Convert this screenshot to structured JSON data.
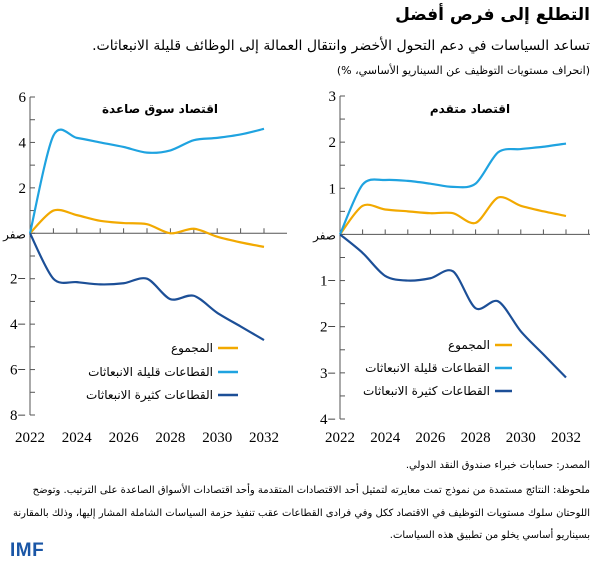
{
  "title": "التطلع إلى فرص أفضل",
  "subtitle": "تساعد السياسات في دعم التحول الأخضر وانتقال العمالة إلى الوظائف قليلة الانبعاثات.",
  "units": "(انحراف مستويات التوظيف عن السيناريو الأساسي، %)",
  "source": "المصدر: حسابات خبراء صندوق النقد الدولي.",
  "note": "ملحوظة: النتائج مستمدة من نموذج تمت معايرته لتمثيل أحد الاقتصادات المتقدمة وأحد اقتصادات الأسواق الصاعدة على الترتيب. وتوضح اللوحتان سلوك مستويات التوظيف في الاقتصاد ككل وفي فرادى القطاعات عقب تنفيذ حزمة السياسات الشاملة المشار إليها، وذلك بالمقارنة بسيناريو أساسي يخلو من تطبيق هذه السياسات.",
  "logo": "IMF",
  "colors": {
    "total": "#F2A900",
    "low": "#1FA3E0",
    "high": "#1C4F97"
  },
  "chart_data": [
    {
      "type": "line",
      "title": "اقتصاد سوق صاعدة",
      "x": [
        2022,
        2023,
        2024,
        2025,
        2026,
        2027,
        2028,
        2029,
        2030,
        2031,
        2032
      ],
      "xticks": [
        "2022",
        "2024",
        "2026",
        "2028",
        "2030",
        "2032"
      ],
      "ylim": [
        -8,
        6
      ],
      "yticks": [
        {
          "v": 6,
          "label": "6"
        },
        {
          "v": 4,
          "label": "4"
        },
        {
          "v": 2,
          "label": "2"
        },
        {
          "v": 0,
          "label": "صفر"
        },
        {
          "v": -2,
          "label": "2−"
        },
        {
          "v": -4,
          "label": "4−"
        },
        {
          "v": -6,
          "label": "6−"
        },
        {
          "v": -8,
          "label": "8−"
        }
      ],
      "legend_position": "bottom-right",
      "series": [
        {
          "key": "total",
          "name": "المجموع",
          "values": [
            0,
            1.0,
            0.8,
            0.55,
            0.45,
            0.4,
            0.0,
            0.2,
            -0.15,
            -0.4,
            -0.6
          ]
        },
        {
          "key": "low",
          "name": "القطاعات قليلة الانبعاثات",
          "values": [
            0,
            4.3,
            4.2,
            4.0,
            3.8,
            3.55,
            3.65,
            4.1,
            4.2,
            4.35,
            4.6
          ]
        },
        {
          "key": "high",
          "name": "القطاعات كثيرة الانبعاثات",
          "values": [
            0,
            -2.0,
            -2.15,
            -2.25,
            -2.2,
            -2.0,
            -2.9,
            -2.75,
            -3.5,
            -4.1,
            -4.7
          ]
        }
      ]
    },
    {
      "type": "line",
      "title": "اقتصاد متقدم",
      "x": [
        2022,
        2023,
        2024,
        2025,
        2026,
        2027,
        2028,
        2029,
        2030,
        2031,
        2032
      ],
      "xticks": [
        "2022",
        "2024",
        "2026",
        "2028",
        "2030",
        "2032"
      ],
      "ylim": [
        -4,
        3
      ],
      "yticks": [
        {
          "v": 3,
          "label": "3"
        },
        {
          "v": 2,
          "label": "2"
        },
        {
          "v": 1,
          "label": "1"
        },
        {
          "v": 0,
          "label": "صفر"
        },
        {
          "v": -1,
          "label": "1−"
        },
        {
          "v": -2,
          "label": "2−"
        },
        {
          "v": -3,
          "label": "3−"
        },
        {
          "v": -4,
          "label": "4−"
        }
      ],
      "legend_position": "bottom-right",
      "series": [
        {
          "key": "total",
          "name": "المجموع",
          "values": [
            0,
            0.62,
            0.54,
            0.5,
            0.46,
            0.46,
            0.25,
            0.8,
            0.62,
            0.5,
            0.4
          ]
        },
        {
          "key": "low",
          "name": "القطاعات قليلة الانبعاثات",
          "values": [
            0,
            1.08,
            1.18,
            1.16,
            1.1,
            1.03,
            1.1,
            1.78,
            1.85,
            1.9,
            1.97
          ]
        },
        {
          "key": "high",
          "name": "القطاعات كثيرة الانبعاثات",
          "values": [
            0,
            -0.4,
            -0.9,
            -1.0,
            -0.95,
            -0.8,
            -1.6,
            -1.45,
            -2.1,
            -2.6,
            -3.1
          ]
        }
      ]
    }
  ]
}
